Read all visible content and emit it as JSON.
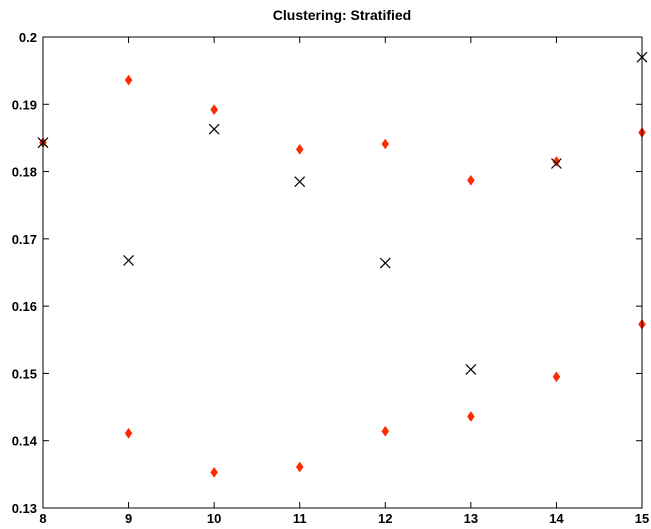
{
  "chart_data": {
    "type": "scatter",
    "title": "Clustering: Stratified",
    "xlabel": "",
    "ylabel": "",
    "xlim": [
      8,
      15
    ],
    "ylim": [
      0.13,
      0.2
    ],
    "xticks": [
      8,
      9,
      10,
      11,
      12,
      13,
      14,
      15
    ],
    "yticks": [
      0.13,
      0.14,
      0.15,
      0.16,
      0.17,
      0.18,
      0.19,
      0.2
    ],
    "grid": false,
    "series": [
      {
        "marker": "diamond",
        "color": "#ff2a00",
        "points": [
          {
            "x": 8,
            "y": 0.1843
          },
          {
            "x": 9,
            "y": 0.1936
          },
          {
            "x": 9,
            "y": 0.1411
          },
          {
            "x": 10,
            "y": 0.1892
          },
          {
            "x": 10,
            "y": 0.1353
          },
          {
            "x": 11,
            "y": 0.1833
          },
          {
            "x": 11,
            "y": 0.1361
          },
          {
            "x": 12,
            "y": 0.1841
          },
          {
            "x": 12,
            "y": 0.1414
          },
          {
            "x": 13,
            "y": 0.1787
          },
          {
            "x": 13,
            "y": 0.1436
          },
          {
            "x": 14,
            "y": 0.1815
          },
          {
            "x": 14,
            "y": 0.1495
          },
          {
            "x": 15,
            "y": 0.1858
          },
          {
            "x": 15,
            "y": 0.1573
          }
        ]
      },
      {
        "marker": "x",
        "color": "#000000",
        "points": [
          {
            "x": 8,
            "y": 0.1843
          },
          {
            "x": 9,
            "y": 0.1668
          },
          {
            "x": 10,
            "y": 0.1863
          },
          {
            "x": 11,
            "y": 0.1785
          },
          {
            "x": 12,
            "y": 0.1664
          },
          {
            "x": 13,
            "y": 0.1506
          },
          {
            "x": 14,
            "y": 0.1812
          },
          {
            "x": 15,
            "y": 0.197
          }
        ]
      }
    ]
  }
}
